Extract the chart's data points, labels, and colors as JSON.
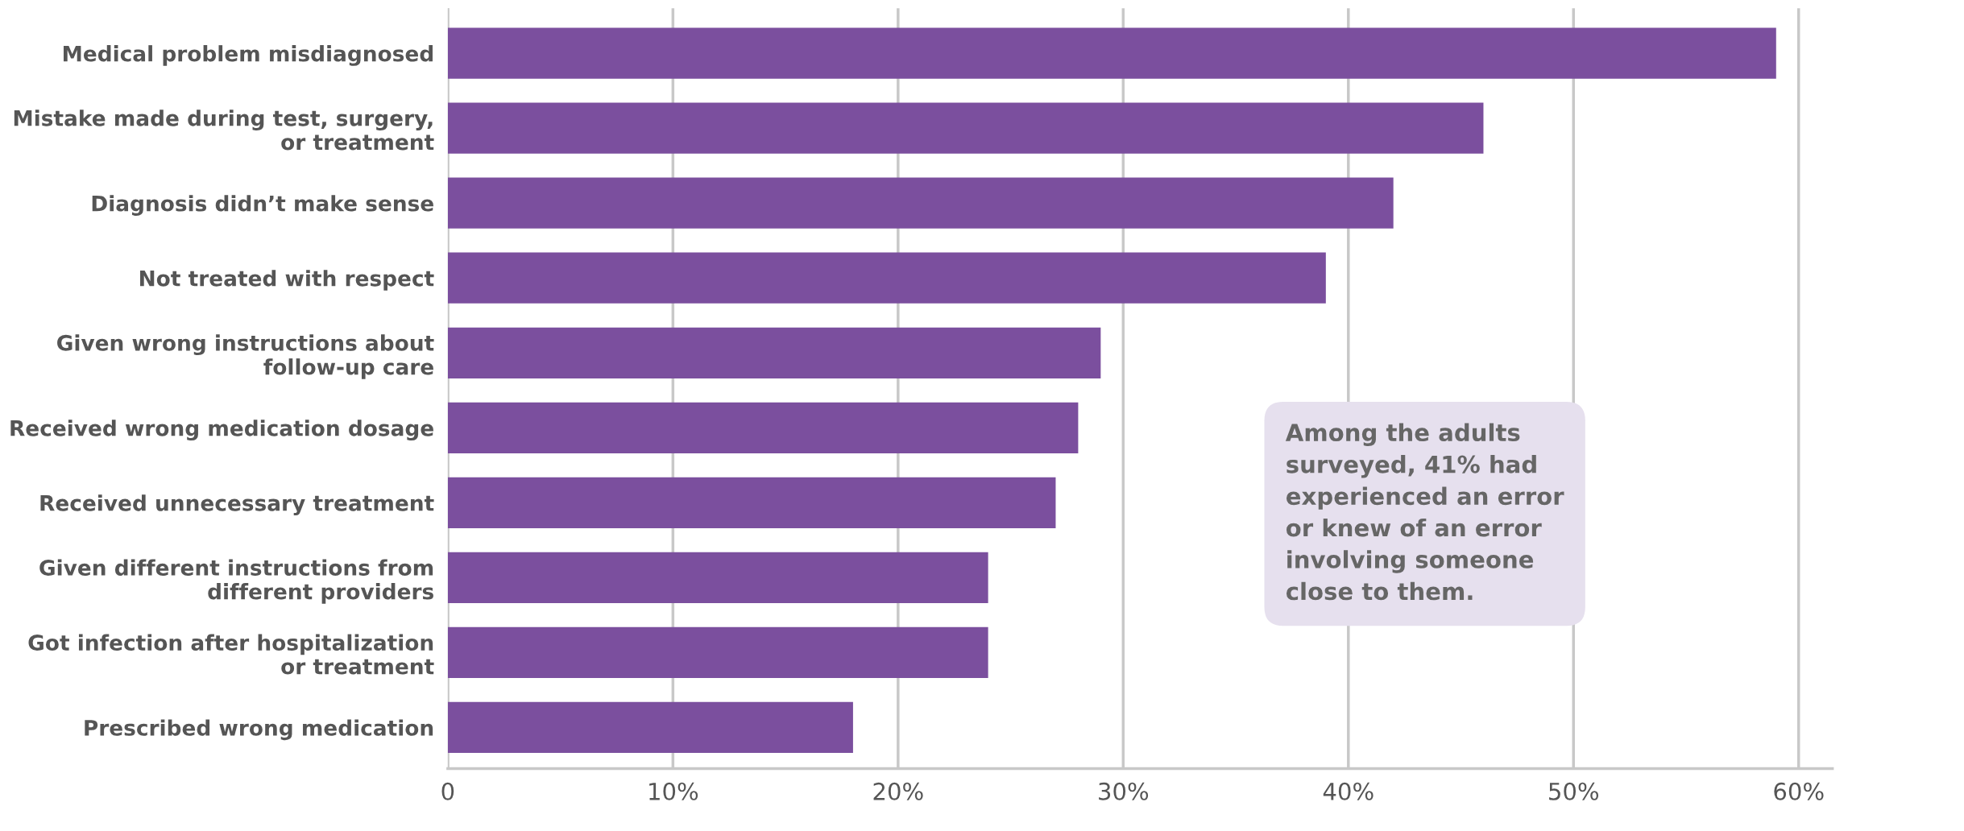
{
  "chart_data": {
    "type": "bar",
    "orientation": "horizontal",
    "categories": [
      "Medical problem misdiagnosed",
      "Mistake made during test, surgery,\nor treatment",
      "Diagnosis didn’t make sense",
      "Not treated with respect",
      "Given wrong instructions about\nfollow-up care",
      "Received wrong medication dosage",
      "Received unnecessary treatment",
      "Given different instructions from\ndifferent providers",
      "Got infection after hospitalization\nor treatment",
      "Prescribed wrong medication"
    ],
    "values": [
      59,
      46,
      42,
      39,
      29,
      28,
      27,
      24,
      24,
      18
    ],
    "color": "#7b4f9e",
    "xlim": [
      0,
      61.5
    ],
    "xticks": [
      0,
      {
        "value": 10,
        "label": "10%"
      },
      {
        "value": 20,
        "label": "20%"
      },
      {
        "value": 30,
        "label": "30%"
      },
      {
        "value": 40,
        "label": "40%"
      },
      {
        "value": 50,
        "label": "50%"
      },
      {
        "value": 60,
        "label": "60%"
      }
    ],
    "grid": "x",
    "annotations": [
      "Among the adults\nsurveyed, 41% had\nexperienced an error\nor knew of an error\ninvolving someone\nclose to them."
    ]
  }
}
